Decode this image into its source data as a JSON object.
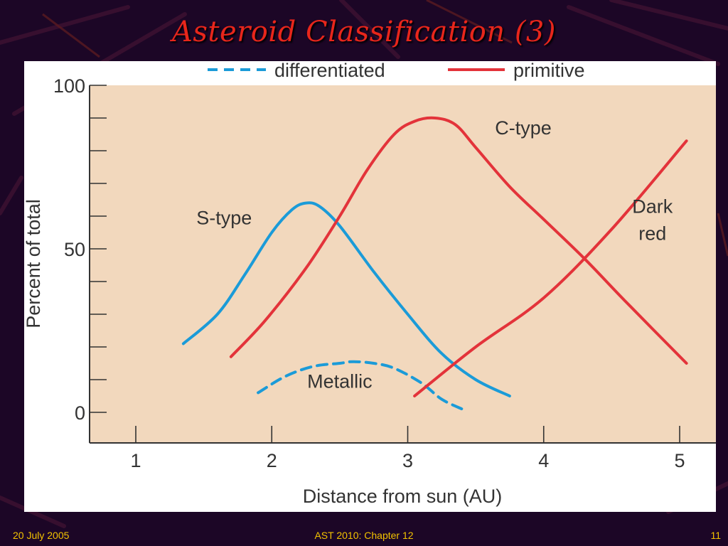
{
  "slide": {
    "title": "Asteroid Classification (3)",
    "footer_left": "20 July 2005",
    "footer_center": "AST 2010: Chapter 12",
    "footer_right": "11"
  },
  "colors": {
    "background": "#1c0626",
    "plot_bg": "#f2d8bd",
    "differentiated": "#1b9bd8",
    "primitive": "#e3333a",
    "title": "#e8261b",
    "footer": "#f2c200"
  },
  "chart_data": {
    "type": "line",
    "title": "",
    "xlabel": "Distance from sun (AU)",
    "ylabel": "Percent of total",
    "xlim": [
      0.7,
      5.3
    ],
    "ylim": [
      -9,
      101
    ],
    "x_ticks": [
      1,
      2,
      3,
      4,
      5
    ],
    "y_ticks_labeled": [
      0,
      50,
      100
    ],
    "y_ticks_minor": [
      10,
      20,
      30,
      40,
      60,
      70,
      80,
      90
    ],
    "grid": false,
    "legend_position": "top",
    "legend": [
      {
        "label": "differentiated",
        "style": "dashed",
        "color": "#1b9bd8"
      },
      {
        "label": "primitive",
        "style": "solid",
        "color": "#e3333a"
      }
    ],
    "series": [
      {
        "name": "S-type",
        "group": "differentiated",
        "style": "solid",
        "label_at": [
          1.65,
          57.5
        ],
        "x": [
          1.35,
          1.6,
          1.8,
          2.0,
          2.15,
          2.25,
          2.35,
          2.5,
          2.75,
          3.0,
          3.25,
          3.5,
          3.75
        ],
        "y": [
          21,
          30,
          42,
          55,
          62,
          64,
          63,
          57,
          43,
          30,
          18,
          10,
          5
        ]
      },
      {
        "name": "Metallic",
        "group": "differentiated",
        "style": "dashed",
        "label_at": [
          2.5,
          7.5
        ],
        "x": [
          1.9,
          2.1,
          2.3,
          2.5,
          2.6,
          2.75,
          2.9,
          3.1,
          3.25,
          3.4
        ],
        "y": [
          6,
          11,
          14,
          15,
          15.5,
          15,
          13.5,
          9,
          4,
          1
        ]
      },
      {
        "name": "C-type",
        "group": "primitive",
        "style": "solid",
        "label_at": [
          3.85,
          85
        ],
        "x": [
          1.7,
          1.95,
          2.25,
          2.5,
          2.7,
          2.9,
          3.05,
          3.2,
          3.35,
          3.5,
          3.75,
          4.0,
          4.3,
          4.6,
          5.05
        ],
        "y": [
          17,
          28,
          44,
          60,
          74,
          85,
          89,
          90,
          88,
          81,
          69,
          59,
          47,
          34,
          15
        ]
      },
      {
        "name": "Dark red",
        "group": "primitive",
        "style": "solid",
        "label_at": [
          4.8,
          61
        ],
        "x": [
          3.05,
          3.5,
          4.0,
          4.5,
          5.05
        ],
        "y": [
          5,
          20,
          35,
          56,
          83
        ]
      }
    ]
  }
}
